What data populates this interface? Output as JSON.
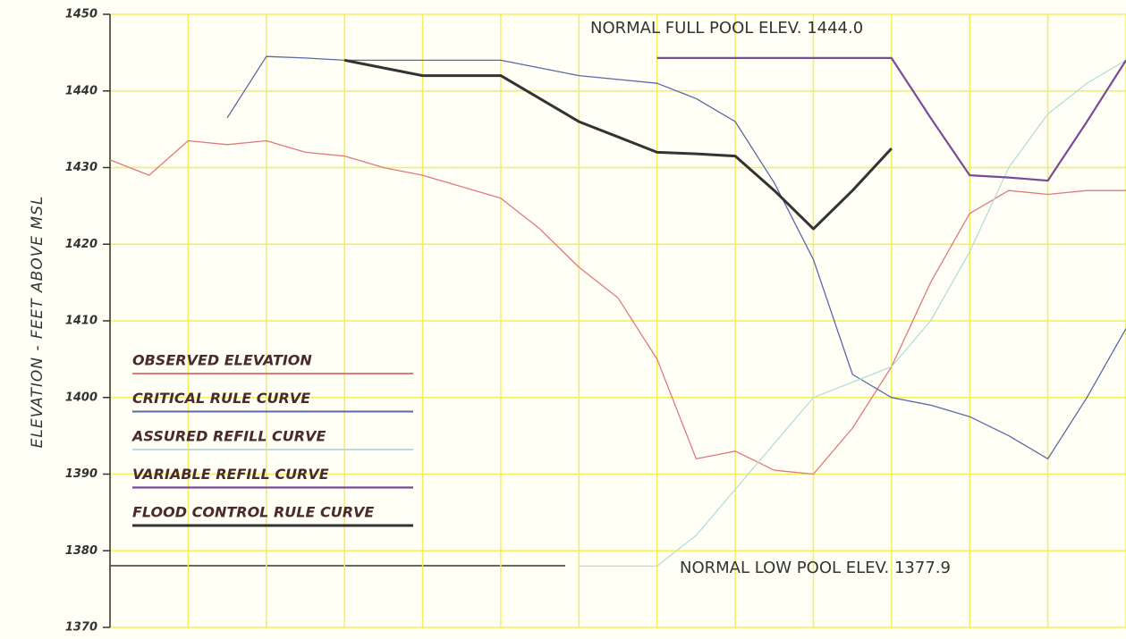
{
  "chart_data": {
    "type": "line",
    "y_label": "ELEVATION - FEET ABOVE MSL",
    "categories": [
      null,
      null,
      null,
      null,
      null,
      null,
      null,
      null,
      null,
      null,
      null,
      null,
      null,
      null,
      null,
      null,
      null,
      null,
      null,
      null,
      null,
      null,
      null,
      null,
      null,
      null,
      null
    ],
    "series": [
      {
        "name": "OBSERVED ELEVATION",
        "color": "#e07a7a",
        "width": 1.3,
        "values": [
          1431,
          1429,
          1433.5,
          1433,
          1433.5,
          1432,
          1431.5,
          1430,
          1429,
          1427.5,
          1426,
          1422,
          1417,
          1413,
          1405,
          1392,
          1393,
          1390.5,
          1390,
          1396,
          1404,
          1415,
          1424,
          1427,
          1426.5,
          1427,
          1427
        ]
      },
      {
        "name": "CRITICAL RULE CURVE",
        "color": "#5a68a8",
        "width": 1.3,
        "values": [
          null,
          null,
          null,
          1436.5,
          1444.5,
          1444.3,
          1444,
          1444,
          1444,
          1444,
          1444,
          1443,
          1442,
          1441.5,
          1441,
          1439,
          1436,
          1428,
          1418,
          1403,
          1400,
          1399,
          1397.5,
          1395,
          1392,
          1400,
          1409
        ]
      },
      {
        "name": "ASSURED REFILL CURVE",
        "color": "#b6dcdc",
        "width": 1.3,
        "values": [
          null,
          null,
          null,
          null,
          null,
          null,
          null,
          null,
          null,
          null,
          null,
          null,
          1378,
          1378,
          1378,
          1382,
          1388,
          1394,
          1400,
          1402,
          1404,
          1410,
          1419,
          1430,
          1437,
          1441,
          1444
        ]
      },
      {
        "name": "VARIABLE REFILL CURVE",
        "color": "#7a4a9a",
        "width": 2.2,
        "values": [
          null,
          null,
          null,
          null,
          null,
          null,
          null,
          null,
          null,
          null,
          null,
          null,
          null,
          null,
          1444.3,
          1444.3,
          1444.3,
          1444.3,
          1444.3,
          1444.3,
          1444.3,
          1436.5,
          1429,
          1428.7,
          1428.3,
          1436,
          1444
        ]
      },
      {
        "name": "FLOOD CONTROL RULE CURVE",
        "color": "#333333",
        "width": 3,
        "values": [
          null,
          null,
          null,
          null,
          null,
          null,
          1444,
          1443,
          1442,
          1442,
          1442,
          1439,
          1436,
          1434,
          1432,
          1431.8,
          1431.5,
          1427,
          1422,
          1427,
          1432.5,
          null,
          null,
          null,
          null,
          null,
          null
        ]
      }
    ],
    "ylim": [
      1370,
      1450
    ],
    "yticks": [
      1370,
      1380,
      1390,
      1400,
      1410,
      1420,
      1430,
      1440,
      1450
    ],
    "grid": true,
    "legend": "lower-left",
    "annotations": [
      {
        "text": "NORMAL FULL POOL ELEV. 1444.0"
      },
      {
        "text": "NORMAL LOW POOL ELEV. 1377.9"
      }
    ]
  }
}
